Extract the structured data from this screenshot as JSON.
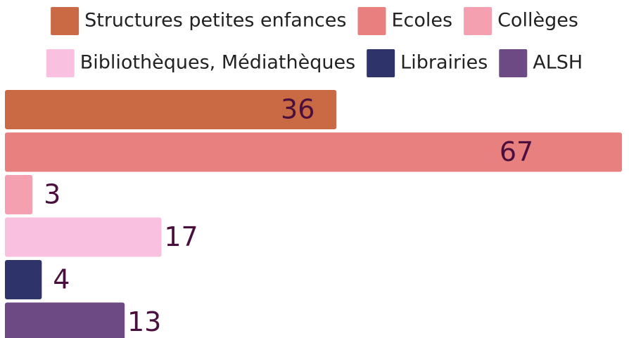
{
  "chart_data": {
    "type": "bar",
    "orientation": "horizontal",
    "series": [
      {
        "name": "Structures petites enfances",
        "color": "#c96a44",
        "values": [
          36
        ]
      },
      {
        "name": "Ecoles",
        "color": "#e88080",
        "values": [
          67
        ]
      },
      {
        "name": "Collèges",
        "color": "#f4a0b0",
        "values": [
          3
        ]
      },
      {
        "name": "Bibliothèques, Médiathèques",
        "color": "#f9c0df",
        "values": [
          17
        ]
      },
      {
        "name": "Librairies",
        "color": "#2e3469",
        "values": [
          4
        ]
      },
      {
        "name": "ALSH",
        "color": "#6e4a84",
        "values": [
          13
        ]
      }
    ]
  }
}
